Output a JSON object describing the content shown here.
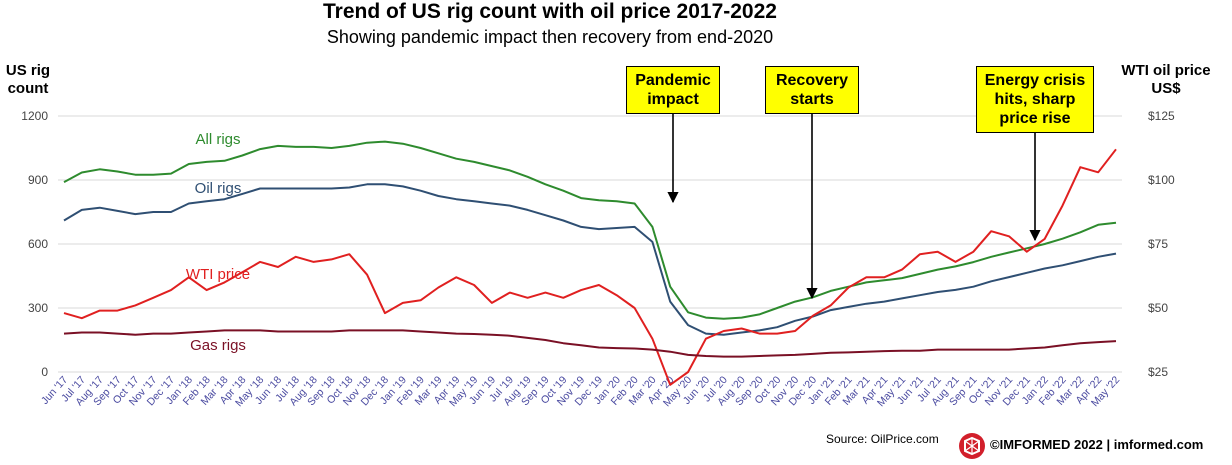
{
  "title": "Trend of US rig count with oil price 2017-2022",
  "subtitle": "Showing pandemic  impact then recovery from end-2020",
  "left_axis_label": [
    "US rig",
    "count"
  ],
  "right_axis_label": [
    "WTI oil price",
    "US$"
  ],
  "annotations": [
    {
      "lines": [
        "Pandemic",
        "impact"
      ]
    },
    {
      "lines": [
        "Recovery",
        "starts"
      ]
    },
    {
      "lines": [
        "Energy crisis",
        "hits, sharp",
        "price rise"
      ]
    }
  ],
  "source": "Source: OilPrice.com",
  "brand": "©IMFORMED 2022  | imformed.com",
  "colors": {
    "all_rigs": "#2e8b2e",
    "oil_rigs": "#2f4f73",
    "wti": "#e02020",
    "gas_rigs": "#7a1025",
    "grid": "#d9d9d9"
  },
  "chart_data": {
    "type": "line",
    "title": "Trend of US rig count with oil price 2017-2022",
    "ylabel": "US rig count",
    "y2label": "WTI oil price US$",
    "ylim": [
      0,
      1200
    ],
    "y2lim": [
      25,
      125
    ],
    "yticks": [
      "0",
      "300",
      "600",
      "900",
      "1200"
    ],
    "y2ticks": [
      "$25",
      "$50",
      "$75",
      "$100",
      "$125"
    ],
    "grid": true,
    "categories": [
      "Jun '17",
      "Jul '17",
      "Aug '17",
      "Sep '17",
      "Oct '17",
      "Nov '17",
      "Dec '17",
      "Jan '18",
      "Feb '18",
      "Mar '18",
      "Apr '18",
      "May '18",
      "Jun '18",
      "Jul '18",
      "Aug '18",
      "Sep '18",
      "Oct '18",
      "Nov '18",
      "Dec '18",
      "Jan '19",
      "Feb '19",
      "Mar '19",
      "Apr '19",
      "May '19",
      "Jun '19",
      "Jul '19",
      "Aug '19",
      "Sep '19",
      "Oct '19",
      "Nov '19",
      "Dec '19",
      "Jan '20",
      "Feb '20",
      "Mar '20",
      "Apr '20",
      "May '20",
      "Jun '20",
      "Jul '20",
      "Aug '20",
      "Sep '20",
      "Oct '20",
      "Nov '20",
      "Dec '20",
      "Jan '21",
      "Feb '21",
      "Mar '21",
      "Apr '21",
      "May '21",
      "Jun '21",
      "Jul '21",
      "Aug '21",
      "Sep '21",
      "Oct '21",
      "Nov '21",
      "Dec '21",
      "Jan '22",
      "Feb '22",
      "Mar '22",
      "Apr '22",
      "May '22"
    ],
    "series": [
      {
        "name": "All rigs",
        "axis": "left",
        "values": [
          890,
          935,
          950,
          940,
          925,
          925,
          930,
          975,
          985,
          990,
          1015,
          1045,
          1060,
          1055,
          1055,
          1050,
          1060,
          1075,
          1080,
          1070,
          1050,
          1025,
          1000,
          985,
          965,
          945,
          915,
          880,
          850,
          815,
          805,
          800,
          790,
          680,
          400,
          280,
          255,
          250,
          255,
          270,
          300,
          330,
          350,
          380,
          400,
          420,
          430,
          440,
          460,
          480,
          495,
          515,
          540,
          560,
          580,
          600,
          625,
          655,
          690,
          700
        ]
      },
      {
        "name": "Oil rigs",
        "axis": "left",
        "values": [
          710,
          760,
          770,
          755,
          740,
          750,
          750,
          790,
          800,
          810,
          835,
          860,
          860,
          860,
          860,
          860,
          865,
          880,
          880,
          870,
          850,
          825,
          810,
          800,
          790,
          780,
          760,
          735,
          710,
          680,
          670,
          675,
          680,
          610,
          330,
          220,
          180,
          175,
          185,
          195,
          210,
          240,
          260,
          290,
          305,
          320,
          330,
          345,
          360,
          375,
          385,
          400,
          425,
          445,
          465,
          485,
          500,
          520,
          540,
          555
        ]
      },
      {
        "name": "WTI price",
        "axis": "right",
        "values": [
          48,
          46,
          49,
          49,
          51,
          54,
          57,
          62,
          57,
          60,
          64,
          68,
          66,
          70,
          68,
          69,
          71,
          63,
          48,
          52,
          53,
          58,
          62,
          59,
          52,
          56,
          54,
          56,
          54,
          57,
          59,
          55,
          50,
          38,
          20,
          25,
          38,
          41,
          42,
          40,
          40,
          41,
          47,
          51,
          58,
          62,
          62,
          65,
          71,
          72,
          68,
          72,
          80,
          78,
          72,
          77,
          90,
          105,
          103,
          112
        ]
      },
      {
        "name": "Gas rigs",
        "axis": "left",
        "values": [
          180,
          185,
          185,
          180,
          175,
          180,
          180,
          185,
          190,
          195,
          195,
          195,
          190,
          190,
          190,
          190,
          195,
          195,
          195,
          195,
          190,
          185,
          180,
          178,
          175,
          170,
          160,
          150,
          135,
          125,
          115,
          112,
          110,
          105,
          95,
          80,
          75,
          72,
          72,
          75,
          78,
          80,
          85,
          90,
          92,
          95,
          98,
          100,
          100,
          105,
          105,
          105,
          105,
          105,
          110,
          115,
          125,
          135,
          140,
          145
        ]
      }
    ]
  }
}
